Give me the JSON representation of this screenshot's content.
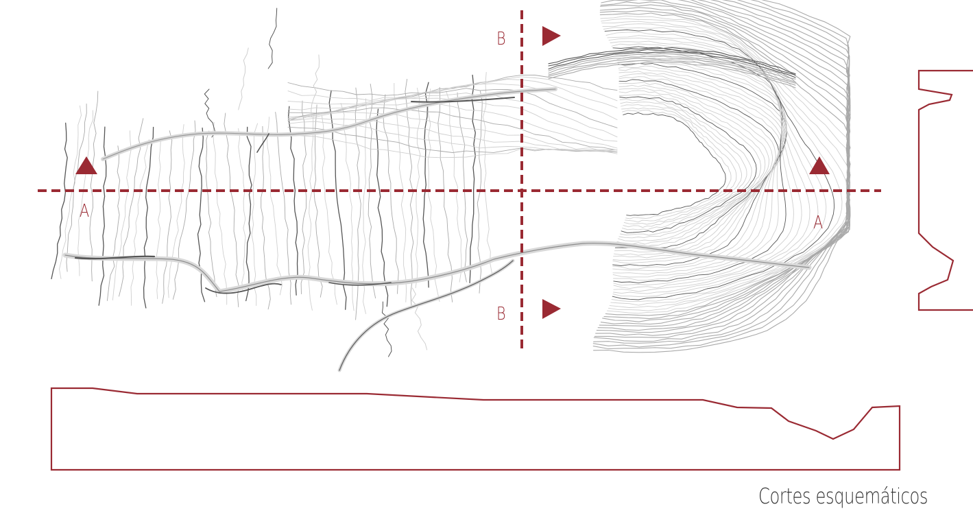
{
  "colors": {
    "section": "#9a2a33",
    "contour_light": "#cfcfcf",
    "contour_mid": "#a9a9a9",
    "contour_dark": "#555555",
    "river": "#d9d9d9",
    "caption_text": "#333333"
  },
  "section_a": {
    "label": "A",
    "marker": "triangle-up"
  },
  "section_b": {
    "label": "B",
    "marker": "triangle-right"
  },
  "caption": "Cortes esquemáticos"
}
